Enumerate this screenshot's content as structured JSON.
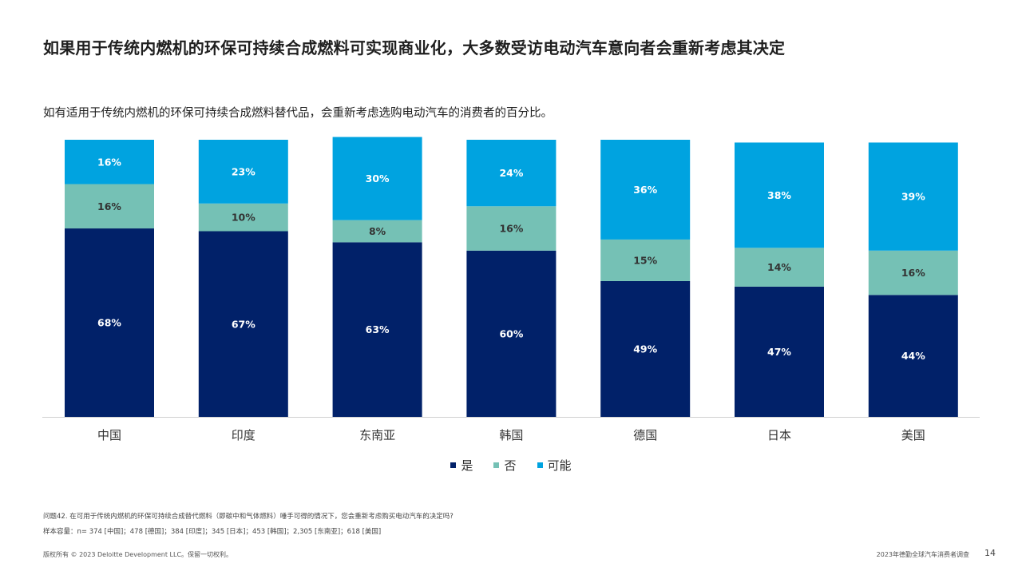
{
  "title": "如果用于传统内燃机的环保可持续合成燃料可实现商业化，大多数受访电动汽车意向者会重新考虑其决定",
  "subtitle": "如有适用于传统内燃机的环保可持续合成燃料替代品，会重新考虑选购电动汽车的消费者的百分比。",
  "chart_data": {
    "type": "bar",
    "stacked": true,
    "categories": [
      "中国",
      "印度",
      "东南亚",
      "韩国",
      "德国",
      "日本",
      "美国"
    ],
    "series": [
      {
        "name": "是",
        "color": "#012169",
        "values": [
          68,
          67,
          63,
          60,
          49,
          47,
          44
        ]
      },
      {
        "name": "否",
        "color": "#75C1B5",
        "values": [
          16,
          10,
          8,
          16,
          15,
          14,
          16
        ]
      },
      {
        "name": "可能",
        "color": "#00A3E0",
        "values": [
          16,
          23,
          30,
          24,
          36,
          38,
          39
        ]
      }
    ],
    "unit": "%",
    "ylim": [
      0,
      100
    ],
    "legend_position": "bottom-center",
    "grid": false
  },
  "legend": [
    {
      "label": "是",
      "color": "#012169"
    },
    {
      "label": "否",
      "color": "#75C1B5"
    },
    {
      "label": "可能",
      "color": "#00A3E0"
    }
  ],
  "footnotes": {
    "question": "问题42. 在可用于传统内燃机的环保可持续合成替代燃料（即碳中和气体燃料）唾手可得的情况下，您会重新考虑购买电动汽车的决定吗?",
    "sample": "样本容量：n= 374 [中国]；478 [德国]；384 [印度]；345 [日本]；453 [韩国]；2,305 [东南亚]；618 [美国]"
  },
  "footer": {
    "copyright": "版权所有 © 2023 Deloitte Development LLC。保留一切权利。",
    "report": "2023年德勤全球汽车消费者调查",
    "page": "14"
  }
}
